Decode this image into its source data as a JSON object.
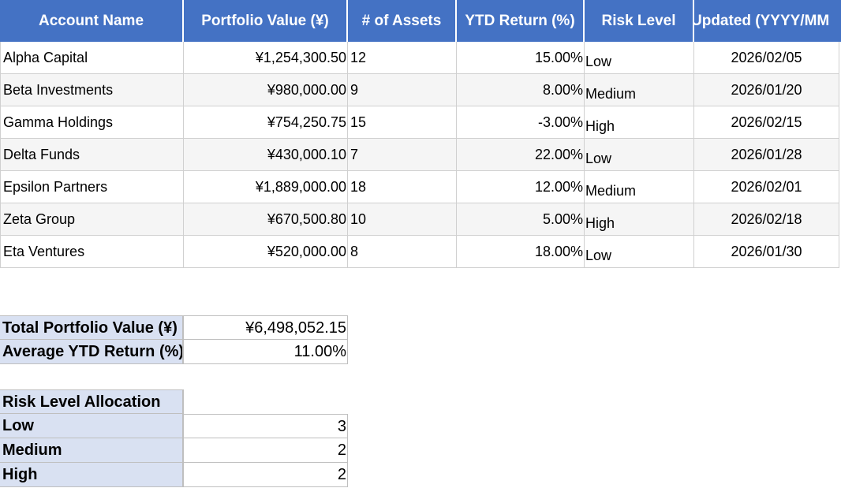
{
  "table": {
    "headers": [
      "Account Name",
      "Portfolio Value (¥)",
      "# of Assets",
      "YTD Return (%)",
      "Risk Level",
      "Updated (YYYY/MM"
    ],
    "rows": [
      {
        "name": "Alpha Capital",
        "value": "¥1,254,300.50",
        "assets": "12",
        "ytd": "15.00%",
        "risk": "Low",
        "updated": "2026/02/05"
      },
      {
        "name": "Beta Investments",
        "value": "¥980,000.00",
        "assets": "9",
        "ytd": "8.00%",
        "risk": "Medium",
        "updated": "2026/01/20"
      },
      {
        "name": "Gamma Holdings",
        "value": "¥754,250.75",
        "assets": "15",
        "ytd": "-3.00%",
        "risk": "High",
        "updated": "2026/02/15"
      },
      {
        "name": "Delta Funds",
        "value": "¥430,000.10",
        "assets": "7",
        "ytd": "22.00%",
        "risk": "Low",
        "updated": "2026/01/28"
      },
      {
        "name": "Epsilon Partners",
        "value": "¥1,889,000.00",
        "assets": "18",
        "ytd": "12.00%",
        "risk": "Medium",
        "updated": "2026/02/01"
      },
      {
        "name": "Zeta Group",
        "value": "¥670,500.80",
        "assets": "10",
        "ytd": "5.00%",
        "risk": "High",
        "updated": "2026/02/18"
      },
      {
        "name": "Eta Ventures",
        "value": "¥520,000.00",
        "assets": "8",
        "ytd": "18.00%",
        "risk": "Low",
        "updated": "2026/01/30"
      }
    ]
  },
  "summary": {
    "total_label": "Total Portfolio Value (¥)",
    "total_value": "¥6,498,052.15",
    "avg_label": "Average YTD Return (%)",
    "avg_value": "11.00%"
  },
  "allocation": {
    "title": "Risk Level Allocation",
    "items": [
      {
        "label": "Low",
        "count": "3"
      },
      {
        "label": "Medium",
        "count": "2"
      },
      {
        "label": "High",
        "count": "2"
      }
    ]
  },
  "colors": {
    "header_bg": "#4472c4",
    "header_text": "#ffffff",
    "summary_label_bg": "#d9e1f2",
    "alt_row_bg": "#f5f5f5"
  }
}
